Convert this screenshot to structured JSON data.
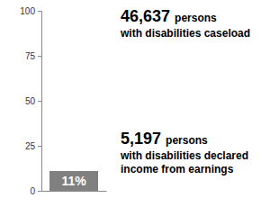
{
  "chart_data": {
    "type": "bar",
    "categories": [
      null
    ],
    "values": [
      11
    ],
    "value_labels": [
      "11%"
    ],
    "data_labels": true,
    "color": "#808080",
    "ylim": [
      0,
      100
    ],
    "yticks": [
      0,
      25,
      50,
      75,
      100
    ],
    "tick_labels": "y",
    "annotations": [
      {
        "figure": "46,637",
        "unit": "persons",
        "text": [
          "with disabilities caseload"
        ]
      },
      {
        "figure": "5,197",
        "unit": "persons",
        "text": [
          "with disabilities declared",
          "income from earnings"
        ]
      }
    ]
  }
}
